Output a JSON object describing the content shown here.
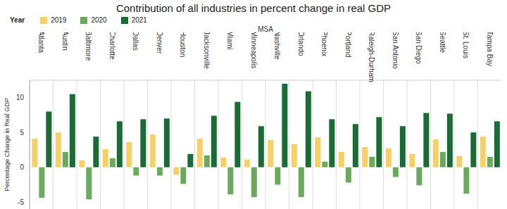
{
  "chart_data": {
    "type": "bar",
    "title": "Contribution of all industries in percent change in real GDP",
    "x_label": "MSA",
    "y_label": "Percentage Change in Real GDP",
    "legend_title": "Year",
    "legend": "top-left",
    "categories": [
      "Atlanta",
      "Austin",
      "Baltimore",
      "Charlotte",
      "Dallas",
      "Denver",
      "Houston",
      "Jacksonville",
      "Miami",
      "Minneapolis",
      "Nashville",
      "Orlando",
      "Phoenix",
      "Portland",
      "Raleigh-Durham",
      "San Antonio",
      "San Diego",
      "Seattle",
      "St. Louis",
      "Tampa Bay"
    ],
    "series": [
      {
        "name": "2019",
        "color": "#f6cf65",
        "values": [
          4.1,
          5.0,
          1.0,
          2.6,
          3.6,
          4.7,
          -1.1,
          4.1,
          1.4,
          1.1,
          3.9,
          3.3,
          4.3,
          2.2,
          2.9,
          2.7,
          1.9,
          4.0,
          1.6,
          4.4
        ]
      },
      {
        "name": "2020",
        "color": "#6aaa5c",
        "values": [
          -4.4,
          2.2,
          -4.6,
          1.3,
          -1.2,
          -1.2,
          -2.4,
          1.7,
          -3.9,
          -4.3,
          -2.5,
          -4.3,
          0.8,
          -2.2,
          1.5,
          -1.4,
          -2.6,
          2.2,
          -3.8,
          1.5
        ]
      },
      {
        "name": "2021",
        "color": "#1b6b36",
        "values": [
          8.0,
          10.5,
          4.4,
          6.6,
          6.9,
          7.0,
          1.9,
          7.4,
          9.4,
          5.9,
          12.0,
          10.9,
          6.9,
          6.2,
          7.2,
          5.9,
          7.8,
          7.7,
          5.0,
          6.6
        ]
      }
    ],
    "ylim": [
      -6,
      12.5
    ],
    "yticks": [
      -5,
      0,
      5,
      10
    ]
  }
}
